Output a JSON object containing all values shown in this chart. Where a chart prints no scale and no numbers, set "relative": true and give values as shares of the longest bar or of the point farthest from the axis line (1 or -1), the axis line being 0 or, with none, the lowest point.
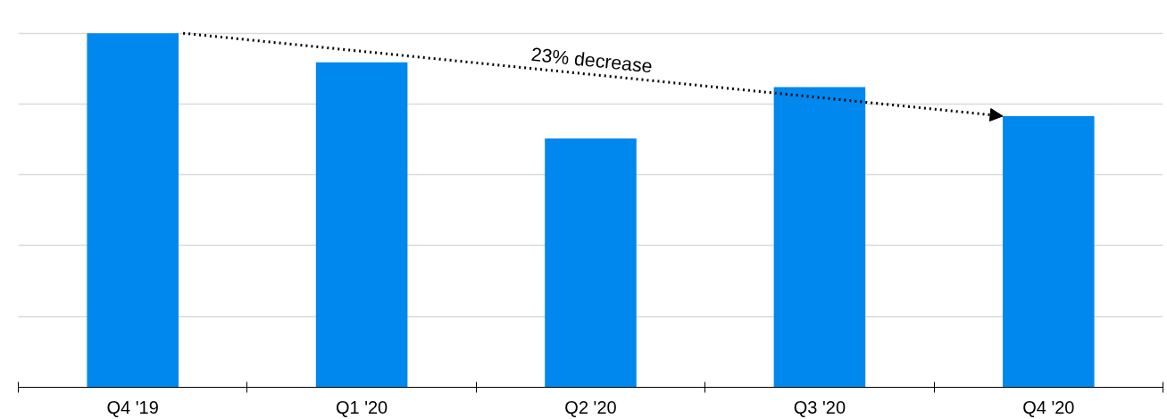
{
  "chart_data": {
    "type": "bar",
    "relative": true,
    "categories": [
      "Q4 '19",
      "Q1 '20",
      "Q2 '20",
      "Q3 '20",
      "Q4 '20"
    ],
    "values": [
      1,
      0.918,
      0.703,
      0.848,
      0.766
    ],
    "color": "#0088ee",
    "grid": "y",
    "annotations": [
      "23% decrease"
    ]
  }
}
